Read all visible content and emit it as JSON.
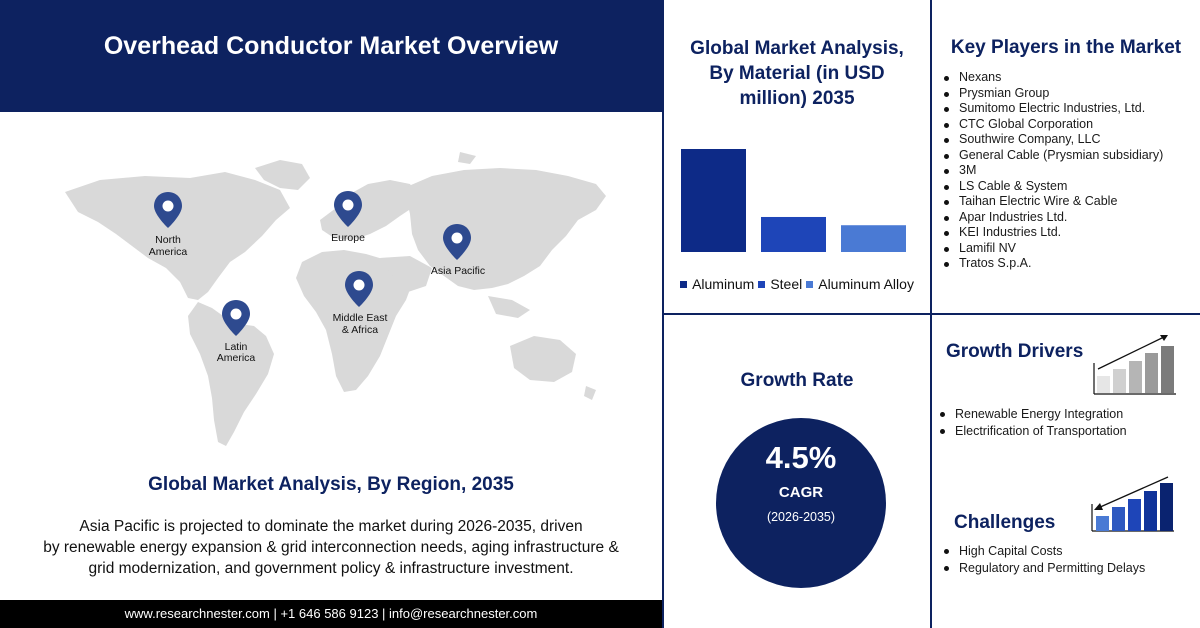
{
  "header": {
    "title": "Overhead Conductor Market Overview"
  },
  "map": {
    "regions": [
      {
        "name": "north-america",
        "label1": "North",
        "label2": "America"
      },
      {
        "name": "europe",
        "label1": "Europe",
        "label2": ""
      },
      {
        "name": "asia-pacific",
        "label1": "Asia Pacific",
        "label2": ""
      },
      {
        "name": "middle-east-africa",
        "label1": "Middle East",
        "label2": "& Africa"
      },
      {
        "name": "latin-america",
        "label1": "Latin",
        "label2": "America"
      }
    ],
    "land_color": "#d9d9d9",
    "pin_color": "#2e4a8f"
  },
  "region_section": {
    "title": "Global Market Analysis, By Region, 2035",
    "line1": "Asia Pacific is projected to dominate the market during 2026-2035, driven",
    "line2": "by renewable energy expansion & grid interconnection needs, aging infrastructure &",
    "line3": "grid modernization, and government policy & infrastructure investment."
  },
  "footer": {
    "text": "www.researchnester.com | +1 646 586 9123 | info@researchnester.com"
  },
  "material": {
    "title_line1": "Global Market Analysis,",
    "title_line2": "By Material (in USD",
    "title_line3": "million) 2035"
  },
  "chart_data": {
    "type": "bar",
    "title": "Global Market Analysis, By Material (in USD million) 2035",
    "categories": [
      "Aluminum",
      "Steel",
      "Aluminum Alloy"
    ],
    "values": [
      100,
      34,
      26
    ],
    "colors": [
      "#0d2a87",
      "#1e45b8",
      "#4a7ad4"
    ],
    "ylim": [
      0,
      100
    ],
    "grid": false,
    "legend": "bottom"
  },
  "key_players": {
    "title": "Key Players in the Market",
    "items": [
      "Nexans",
      "Prysmian Group",
      "Sumitomo Electric Industries, Ltd.",
      "CTC Global Corporation",
      "Southwire Company, LLC",
      "General Cable (Prysmian subsidiary)",
      "3M",
      "LS Cable & System",
      "Taihan Electric Wire & Cable",
      "Apar Industries Ltd.",
      "KEI Industries Ltd.",
      "Lamifil NV",
      "Tratos S.p.A."
    ]
  },
  "growth_rate": {
    "title": "Growth Rate",
    "value": "4.5%",
    "label": "CAGR",
    "period": "(2026-2035)"
  },
  "growth_drivers": {
    "title": "Growth Drivers",
    "icon": "rising-bar-chart-icon",
    "items": [
      "Renewable Energy Integration",
      "Electrification of Transportation"
    ]
  },
  "challenges": {
    "title": "Challenges",
    "icon": "declining-bar-chart-icon",
    "items": [
      "High Capital Costs",
      "Regulatory and Permitting Delays"
    ]
  },
  "colors": {
    "navy": "#0d2260",
    "accent": "#2e4a8f"
  }
}
